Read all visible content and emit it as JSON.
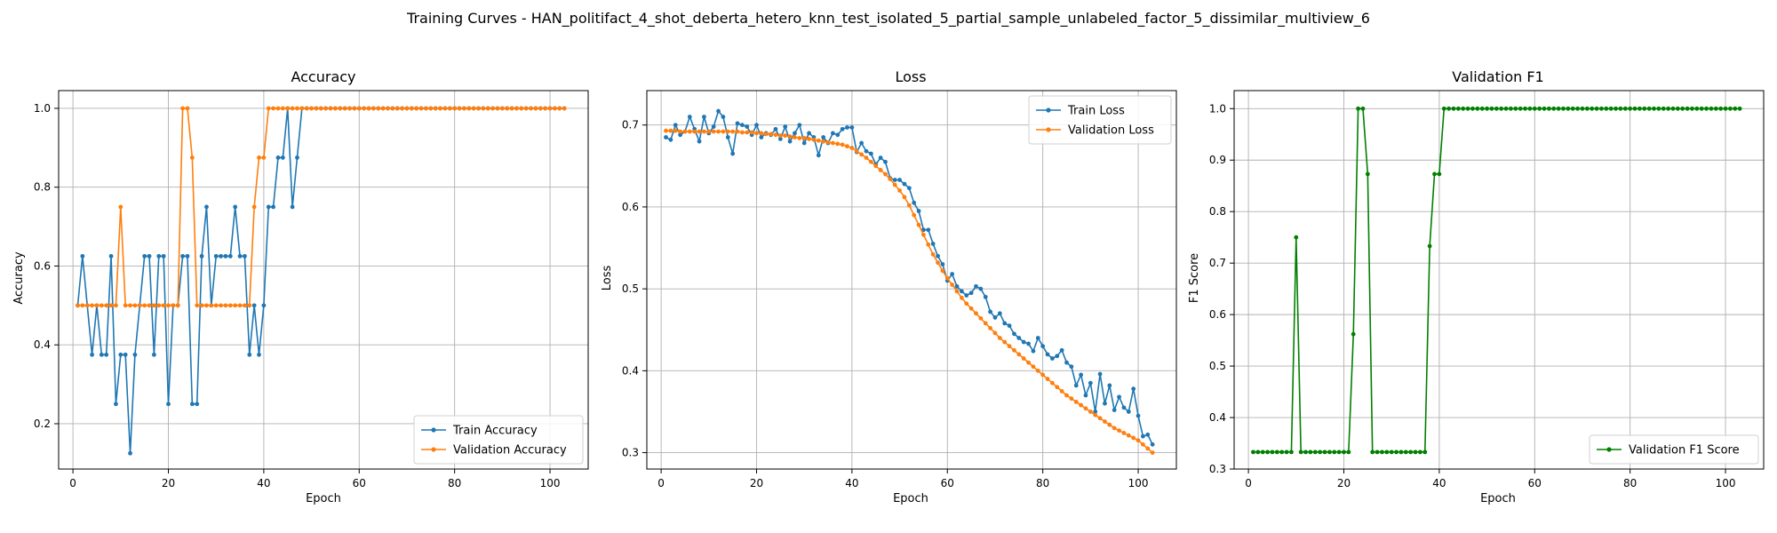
{
  "figure_title": "Training Curves - HAN_politifact_4_shot_deberta_hetero_knn_test_isolated_5_partial_sample_unlabeled_factor_5_dissimilar_multiview_6",
  "chart_data": [
    {
      "type": "line",
      "title": "Accuracy",
      "xlabel": "Epoch",
      "ylabel": "Accuracy",
      "xlim": [
        -3,
        108
      ],
      "ylim": [
        0.085,
        1.045
      ],
      "xticks": [
        0,
        20,
        40,
        60,
        80,
        100
      ],
      "yticks": [
        0.2,
        0.4,
        0.6,
        0.8,
        1.0
      ],
      "ytick_labels": [
        "0.2",
        "0.4",
        "0.6",
        "0.8",
        "1.0"
      ],
      "grid": true,
      "legend_position": "lower right",
      "x": [
        1,
        2,
        3,
        4,
        5,
        6,
        7,
        8,
        9,
        10,
        11,
        12,
        13,
        14,
        15,
        16,
        17,
        18,
        19,
        20,
        21,
        22,
        23,
        24,
        25,
        26,
        27,
        28,
        29,
        30,
        31,
        32,
        33,
        34,
        35,
        36,
        37,
        38,
        39,
        40,
        41,
        42,
        43,
        44,
        45,
        46,
        47,
        48,
        49,
        50,
        51,
        52,
        53,
        54,
        55,
        56,
        57,
        58,
        59,
        60,
        61,
        62,
        63,
        64,
        65,
        66,
        67,
        68,
        69,
        70,
        71,
        72,
        73,
        74,
        75,
        76,
        77,
        78,
        79,
        80,
        81,
        82,
        83,
        84,
        85,
        86,
        87,
        88,
        89,
        90,
        91,
        92,
        93,
        94,
        95,
        96,
        97,
        98,
        99,
        100,
        101,
        102,
        103
      ],
      "series": [
        {
          "name": "Train Accuracy",
          "color": "#1f77b4",
          "values": [
            0.5,
            0.625,
            0.5,
            0.375,
            0.5,
            0.375,
            0.375,
            0.625,
            0.25,
            0.375,
            0.375,
            0.125,
            0.375,
            0.5,
            0.625,
            0.625,
            0.375,
            0.625,
            0.625,
            0.25,
            0.5,
            0.5,
            0.625,
            0.625,
            0.25,
            0.25,
            0.625,
            0.75,
            0.5,
            0.625,
            0.625,
            0.625,
            0.625,
            0.75,
            0.625,
            0.625,
            0.375,
            0.5,
            0.375,
            0.5,
            0.75,
            0.75,
            0.875,
            0.875,
            1.0,
            0.75,
            0.875,
            1.0,
            1.0,
            1.0,
            1.0,
            1.0,
            1.0,
            1.0,
            1.0,
            1.0,
            1.0,
            1.0,
            1.0,
            1.0,
            1.0,
            1.0,
            1.0,
            1.0,
            1.0,
            1.0,
            1.0,
            1.0,
            1.0,
            1.0,
            1.0,
            1.0,
            1.0,
            1.0,
            1.0,
            1.0,
            1.0,
            1.0,
            1.0,
            1.0,
            1.0,
            1.0,
            1.0,
            1.0,
            1.0,
            1.0,
            1.0,
            1.0,
            1.0,
            1.0,
            1.0,
            1.0,
            1.0,
            1.0,
            1.0,
            1.0,
            1.0,
            1.0,
            1.0,
            1.0,
            1.0,
            1.0,
            1.0
          ]
        },
        {
          "name": "Validation Accuracy",
          "color": "#ff7f0e",
          "values": [
            0.5,
            0.5,
            0.5,
            0.5,
            0.5,
            0.5,
            0.5,
            0.5,
            0.5,
            0.75,
            0.5,
            0.5,
            0.5,
            0.5,
            0.5,
            0.5,
            0.5,
            0.5,
            0.5,
            0.5,
            0.5,
            0.5,
            1.0,
            1.0,
            0.875,
            0.5,
            0.5,
            0.5,
            0.5,
            0.5,
            0.5,
            0.5,
            0.5,
            0.5,
            0.5,
            0.5,
            0.5,
            0.75,
            0.875,
            0.875,
            1.0,
            1.0,
            1.0,
            1.0,
            1.0,
            1.0,
            1.0,
            1.0,
            1.0,
            1.0,
            1.0,
            1.0,
            1.0,
            1.0,
            1.0,
            1.0,
            1.0,
            1.0,
            1.0,
            1.0,
            1.0,
            1.0,
            1.0,
            1.0,
            1.0,
            1.0,
            1.0,
            1.0,
            1.0,
            1.0,
            1.0,
            1.0,
            1.0,
            1.0,
            1.0,
            1.0,
            1.0,
            1.0,
            1.0,
            1.0,
            1.0,
            1.0,
            1.0,
            1.0,
            1.0,
            1.0,
            1.0,
            1.0,
            1.0,
            1.0,
            1.0,
            1.0,
            1.0,
            1.0,
            1.0,
            1.0,
            1.0,
            1.0,
            1.0,
            1.0,
            1.0,
            1.0,
            1.0
          ]
        }
      ]
    },
    {
      "type": "line",
      "title": "Loss",
      "xlabel": "Epoch",
      "ylabel": "Loss",
      "xlim": [
        -3,
        108
      ],
      "ylim": [
        0.28,
        0.742
      ],
      "xticks": [
        0,
        20,
        40,
        60,
        80,
        100
      ],
      "yticks": [
        0.3,
        0.4,
        0.5,
        0.6,
        0.7
      ],
      "ytick_labels": [
        "0.3",
        "0.4",
        "0.5",
        "0.6",
        "0.7"
      ],
      "grid": true,
      "legend_position": "upper right",
      "x": [
        1,
        2,
        3,
        4,
        5,
        6,
        7,
        8,
        9,
        10,
        11,
        12,
        13,
        14,
        15,
        16,
        17,
        18,
        19,
        20,
        21,
        22,
        23,
        24,
        25,
        26,
        27,
        28,
        29,
        30,
        31,
        32,
        33,
        34,
        35,
        36,
        37,
        38,
        39,
        40,
        41,
        42,
        43,
        44,
        45,
        46,
        47,
        48,
        49,
        50,
        51,
        52,
        53,
        54,
        55,
        56,
        57,
        58,
        59,
        60,
        61,
        62,
        63,
        64,
        65,
        66,
        67,
        68,
        69,
        70,
        71,
        72,
        73,
        74,
        75,
        76,
        77,
        78,
        79,
        80,
        81,
        82,
        83,
        84,
        85,
        86,
        87,
        88,
        89,
        90,
        91,
        92,
        93,
        94,
        95,
        96,
        97,
        98,
        99,
        100,
        101,
        102,
        103
      ],
      "series": [
        {
          "name": "Train Loss",
          "color": "#1f77b4",
          "values": [
            0.685,
            0.682,
            0.7,
            0.688,
            0.692,
            0.71,
            0.695,
            0.68,
            0.71,
            0.69,
            0.698,
            0.717,
            0.71,
            0.685,
            0.665,
            0.702,
            0.7,
            0.698,
            0.688,
            0.7,
            0.685,
            0.69,
            0.688,
            0.695,
            0.683,
            0.698,
            0.68,
            0.69,
            0.7,
            0.678,
            0.69,
            0.685,
            0.663,
            0.685,
            0.678,
            0.69,
            0.688,
            0.695,
            0.697,
            0.697,
            0.667,
            0.678,
            0.668,
            0.665,
            0.652,
            0.66,
            0.655,
            0.635,
            0.633,
            0.633,
            0.628,
            0.623,
            0.605,
            0.595,
            0.572,
            0.572,
            0.555,
            0.54,
            0.53,
            0.51,
            0.518,
            0.503,
            0.497,
            0.492,
            0.495,
            0.503,
            0.5,
            0.49,
            0.472,
            0.465,
            0.47,
            0.458,
            0.455,
            0.445,
            0.44,
            0.435,
            0.433,
            0.424,
            0.44,
            0.43,
            0.42,
            0.415,
            0.418,
            0.425,
            0.41,
            0.405,
            0.382,
            0.395,
            0.37,
            0.385,
            0.35,
            0.396,
            0.36,
            0.382,
            0.352,
            0.368,
            0.355,
            0.35,
            0.378,
            0.345,
            0.32,
            0.322,
            0.31
          ]
        },
        {
          "name": "Validation Loss",
          "color": "#ff7f0e",
          "values": [
            0.693,
            0.693,
            0.693,
            0.692,
            0.692,
            0.692,
            0.692,
            0.692,
            0.692,
            0.692,
            0.692,
            0.692,
            0.692,
            0.692,
            0.692,
            0.692,
            0.691,
            0.691,
            0.691,
            0.69,
            0.69,
            0.689,
            0.689,
            0.688,
            0.687,
            0.687,
            0.686,
            0.685,
            0.684,
            0.684,
            0.683,
            0.682,
            0.681,
            0.68,
            0.679,
            0.678,
            0.677,
            0.676,
            0.674,
            0.672,
            0.668,
            0.664,
            0.66,
            0.655,
            0.65,
            0.645,
            0.64,
            0.634,
            0.627,
            0.62,
            0.612,
            0.602,
            0.59,
            0.578,
            0.566,
            0.554,
            0.542,
            0.532,
            0.522,
            0.513,
            0.505,
            0.497,
            0.489,
            0.482,
            0.476,
            0.47,
            0.464,
            0.458,
            0.452,
            0.446,
            0.44,
            0.435,
            0.43,
            0.425,
            0.42,
            0.415,
            0.41,
            0.405,
            0.4,
            0.395,
            0.39,
            0.385,
            0.38,
            0.375,
            0.37,
            0.366,
            0.362,
            0.358,
            0.354,
            0.35,
            0.346,
            0.342,
            0.338,
            0.334,
            0.33,
            0.327,
            0.324,
            0.321,
            0.318,
            0.315,
            0.31,
            0.305,
            0.3
          ]
        }
      ]
    },
    {
      "type": "line",
      "title": "Validation F1",
      "xlabel": "Epoch",
      "ylabel": "F1 Score",
      "xlim": [
        -3,
        108
      ],
      "ylim": [
        0.3,
        1.035
      ],
      "xticks": [
        0,
        20,
        40,
        60,
        80,
        100
      ],
      "yticks": [
        0.3,
        0.4,
        0.5,
        0.6,
        0.7,
        0.8,
        0.9,
        1.0
      ],
      "ytick_labels": [
        "0.3",
        "0.4",
        "0.5",
        "0.6",
        "0.7",
        "0.8",
        "0.9",
        "1.0"
      ],
      "grid": true,
      "legend_position": "lower right",
      "x": [
        1,
        2,
        3,
        4,
        5,
        6,
        7,
        8,
        9,
        10,
        11,
        12,
        13,
        14,
        15,
        16,
        17,
        18,
        19,
        20,
        21,
        22,
        23,
        24,
        25,
        26,
        27,
        28,
        29,
        30,
        31,
        32,
        33,
        34,
        35,
        36,
        37,
        38,
        39,
        40,
        41,
        42,
        43,
        44,
        45,
        46,
        47,
        48,
        49,
        50,
        51,
        52,
        53,
        54,
        55,
        56,
        57,
        58,
        59,
        60,
        61,
        62,
        63,
        64,
        65,
        66,
        67,
        68,
        69,
        70,
        71,
        72,
        73,
        74,
        75,
        76,
        77,
        78,
        79,
        80,
        81,
        82,
        83,
        84,
        85,
        86,
        87,
        88,
        89,
        90,
        91,
        92,
        93,
        94,
        95,
        96,
        97,
        98,
        99,
        100,
        101,
        102,
        103
      ],
      "series": [
        {
          "name": "Validation F1 Score",
          "color": "#008000",
          "values": [
            0.333,
            0.333,
            0.333,
            0.333,
            0.333,
            0.333,
            0.333,
            0.333,
            0.333,
            0.75,
            0.333,
            0.333,
            0.333,
            0.333,
            0.333,
            0.333,
            0.333,
            0.333,
            0.333,
            0.333,
            0.333,
            0.562,
            1.0,
            1.0,
            0.873,
            0.333,
            0.333,
            0.333,
            0.333,
            0.333,
            0.333,
            0.333,
            0.333,
            0.333,
            0.333,
            0.333,
            0.333,
            0.733,
            0.873,
            0.873,
            1.0,
            1.0,
            1.0,
            1.0,
            1.0,
            1.0,
            1.0,
            1.0,
            1.0,
            1.0,
            1.0,
            1.0,
            1.0,
            1.0,
            1.0,
            1.0,
            1.0,
            1.0,
            1.0,
            1.0,
            1.0,
            1.0,
            1.0,
            1.0,
            1.0,
            1.0,
            1.0,
            1.0,
            1.0,
            1.0,
            1.0,
            1.0,
            1.0,
            1.0,
            1.0,
            1.0,
            1.0,
            1.0,
            1.0,
            1.0,
            1.0,
            1.0,
            1.0,
            1.0,
            1.0,
            1.0,
            1.0,
            1.0,
            1.0,
            1.0,
            1.0,
            1.0,
            1.0,
            1.0,
            1.0,
            1.0,
            1.0,
            1.0,
            1.0,
            1.0,
            1.0,
            1.0,
            1.0
          ]
        }
      ]
    }
  ]
}
